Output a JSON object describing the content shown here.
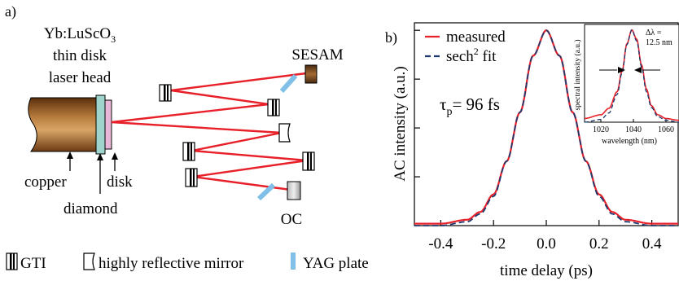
{
  "panel_a": {
    "label": "a)",
    "head_title": [
      "Yb:LuScO",
      "3",
      "thin disk",
      "laser head"
    ],
    "sesam": "SESAM",
    "oc": "OC",
    "copper": "copper",
    "diamond": "diamond",
    "disk": "disk",
    "legend": {
      "gti": "GTI",
      "mirror": "highly reflective mirror",
      "yag": "YAG plate"
    }
  },
  "panel_b": {
    "label": "b)",
    "legend_measured": "measured",
    "legend_fit_prefix": "sech",
    "legend_fit_sup": "2",
    "legend_fit_suffix": " fit",
    "tau_symbol": "τ",
    "tau_sub": "p",
    "tau_value": "= 96 fs",
    "inset": {
      "ylabel": "spectral intensity (a.u.)",
      "xlabel": "wavelength (nm)",
      "dl_line1": "Δλ =",
      "dl_line2": "12.5 nm",
      "xticks": [
        "1020",
        "1040",
        "1060"
      ]
    }
  },
  "colors": {
    "measured": "#e8202a",
    "fit": "#1f3a6e",
    "beam": "#e8202a",
    "yag": "#7fbfe8",
    "copper_dark": "#6b3a12",
    "copper_light": "#c9924e",
    "diamond": "#9fd4cc",
    "disk": "#e9b6d8"
  },
  "chart_data": [
    {
      "type": "line",
      "title": "",
      "xlabel": "time delay (ps)",
      "ylabel": "AC intensity (a.u.)",
      "xlim": [
        -0.5,
        0.5
      ],
      "ylim": [
        0,
        1.03
      ],
      "xticks": [
        -0.4,
        -0.2,
        0.0,
        0.2,
        0.4
      ],
      "xtick_labels": [
        "-0.4",
        "-0.2",
        "0.0",
        "0.2",
        "0.4"
      ],
      "legend_position": "top-left",
      "grid": false,
      "series": [
        {
          "name": "measured",
          "x": [
            -0.5,
            -0.4,
            -0.3,
            -0.25,
            -0.2,
            -0.15,
            -0.1,
            -0.05,
            0.0,
            0.05,
            0.1,
            0.15,
            0.2,
            0.25,
            0.3,
            0.4,
            0.5
          ],
          "y": [
            0.01,
            0.01,
            0.03,
            0.07,
            0.16,
            0.33,
            0.58,
            0.87,
            1.0,
            0.87,
            0.58,
            0.33,
            0.16,
            0.07,
            0.03,
            0.01,
            0.01
          ]
        },
        {
          "name": "sech² fit",
          "x": [
            -0.5,
            -0.4,
            -0.3,
            -0.25,
            -0.2,
            -0.15,
            -0.1,
            -0.05,
            0.0,
            0.05,
            0.1,
            0.15,
            0.2,
            0.25,
            0.3,
            0.4,
            0.5
          ],
          "y": [
            0.0,
            0.0,
            0.02,
            0.06,
            0.15,
            0.33,
            0.58,
            0.87,
            1.0,
            0.87,
            0.58,
            0.33,
            0.15,
            0.06,
            0.02,
            0.0,
            0.0
          ]
        }
      ]
    },
    {
      "type": "line",
      "title": "",
      "xlabel": "wavelength (nm)",
      "ylabel": "spectral intensity (a.u.)",
      "xlim": [
        1010,
        1068
      ],
      "ylim": [
        0,
        1.05
      ],
      "xticks": [
        1020,
        1040,
        1060
      ],
      "series": [
        {
          "name": "measured",
          "x": [
            1010,
            1020,
            1025,
            1030,
            1033,
            1036,
            1039,
            1042,
            1045,
            1048,
            1051,
            1055,
            1060,
            1068
          ],
          "y": [
            0.04,
            0.08,
            0.15,
            0.33,
            0.55,
            0.85,
            1.0,
            0.9,
            0.62,
            0.36,
            0.18,
            0.08,
            0.04,
            0.02
          ]
        },
        {
          "name": "sech² fit",
          "x": [
            1010,
            1020,
            1025,
            1030,
            1033,
            1036,
            1039,
            1042,
            1045,
            1048,
            1051,
            1055,
            1060,
            1068
          ],
          "y": [
            0.0,
            0.03,
            0.1,
            0.3,
            0.53,
            0.84,
            1.0,
            0.88,
            0.6,
            0.33,
            0.16,
            0.06,
            0.02,
            0.0
          ]
        }
      ]
    }
  ]
}
